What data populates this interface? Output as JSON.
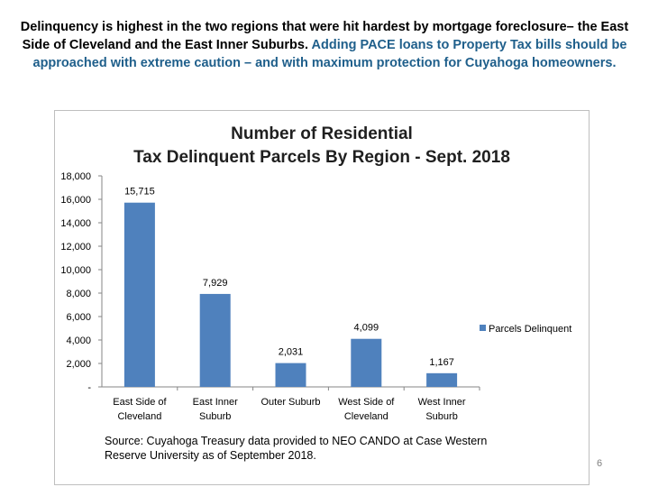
{
  "slide": {
    "heading_main": "Delinquency is highest in the two regions that were hit hardest by mortgage foreclosure– the East Side of Cleveland and the East Inner Suburbs.",
    "heading_accent": "Adding PACE loans to Property Tax bills should be approached with extreme caution – and with maximum protection for Cuyahoga homeowners.",
    "source_line1": "Source: Cuyahoga Treasury data provided to NEO CANDO at Case Western",
    "source_line2": "Reserve University as of September 2018.",
    "page_number": "6"
  },
  "chart_data": {
    "type": "bar",
    "title_line1": "Number of Residential",
    "title_line2": "Tax Delinquent Parcels By Region - Sept. 2018",
    "categories": [
      [
        "East Side of",
        "Cleveland"
      ],
      [
        "East Inner",
        "Suburb"
      ],
      [
        "Outer Suburb"
      ],
      [
        "West Side of",
        "Cleveland"
      ],
      [
        "West Inner",
        "Suburb"
      ]
    ],
    "series": [
      {
        "name": "Parcels Delinquent",
        "values": [
          15715,
          7929,
          2031,
          4099,
          1167
        ],
        "color": "#4f81bd"
      }
    ],
    "data_labels": [
      "15,715",
      "7,929",
      "2,031",
      "4,099",
      "1,167"
    ],
    "y_ticks": [
      0,
      2000,
      4000,
      6000,
      8000,
      10000,
      12000,
      14000,
      16000,
      18000
    ],
    "y_tick_labels": [
      "-",
      "2,000",
      "4,000",
      "6,000",
      "8,000",
      "10,000",
      "12,000",
      "14,000",
      "16,000",
      "18,000"
    ],
    "ylim": [
      0,
      18000
    ],
    "grid": false,
    "legend_position": "right"
  }
}
